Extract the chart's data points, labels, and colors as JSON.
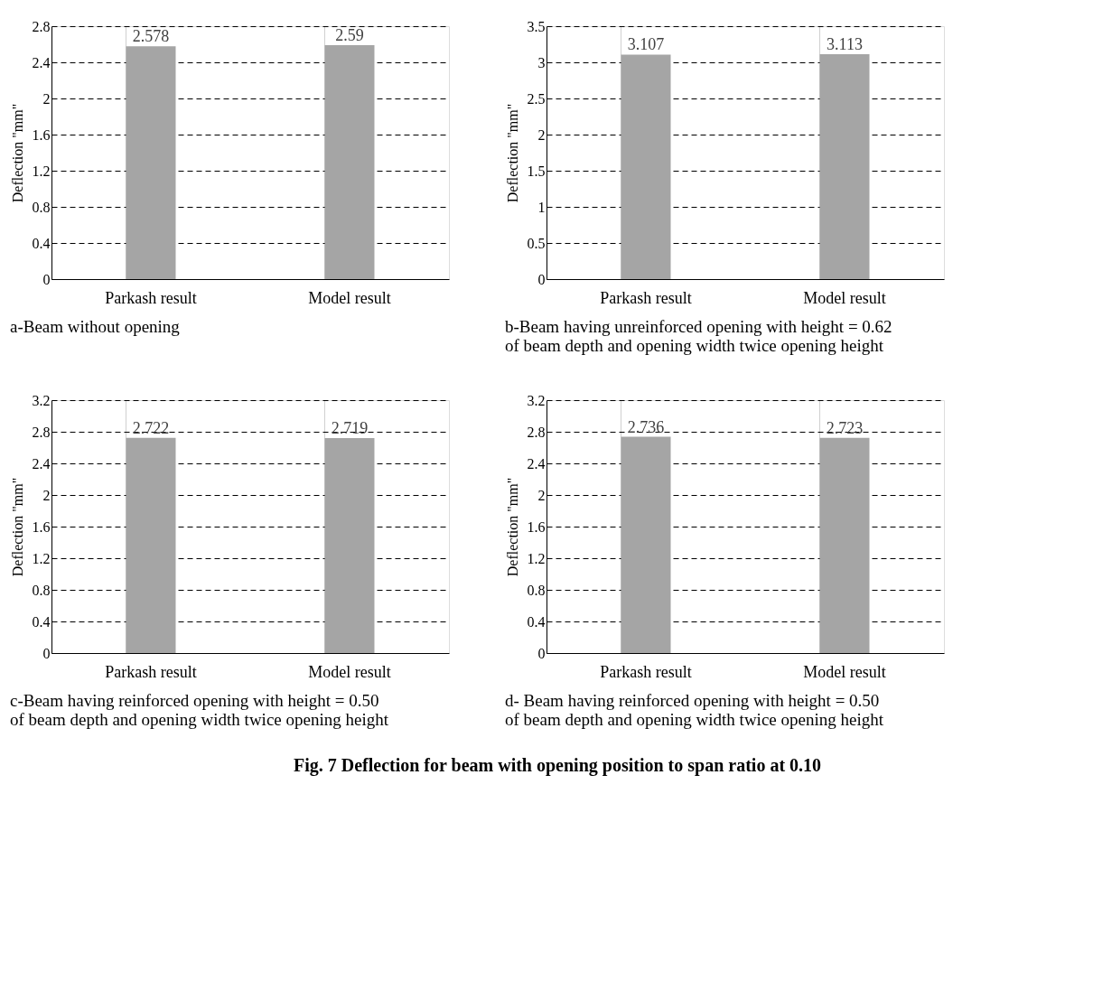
{
  "chart_data": [
    {
      "type": "bar",
      "title": "a-Beam without opening",
      "ylabel": "Deflection \"mm\"",
      "categories": [
        "Parkash result",
        "Model result"
      ],
      "values": [
        2.578,
        2.59
      ],
      "color": "#a5a5a5",
      "ylim": [
        0,
        2.8
      ],
      "yticks": [
        0,
        0.4,
        0.8,
        1.2,
        1.6,
        2,
        2.4,
        2.8
      ],
      "grid": true,
      "data_labels": true
    },
    {
      "type": "bar",
      "title": "b-Beam having unreinforced opening with height = 0.62\n    of beam depth and opening width twice opening height",
      "ylabel": "Deflection \"mm\"",
      "categories": [
        "Parkash result",
        "Model result"
      ],
      "values": [
        3.107,
        3.113
      ],
      "color": "#a5a5a5",
      "ylim": [
        0,
        3.5
      ],
      "yticks": [
        0,
        0.5,
        1,
        1.5,
        2,
        2.5,
        3,
        3.5
      ],
      "grid": true,
      "data_labels": true
    },
    {
      "type": "bar",
      "title": "c-Beam having reinforced opening with height = 0.50\n    of beam depth and opening width twice opening height",
      "ylabel": "Deflection \"mm\"",
      "categories": [
        "Parkash result",
        "Model result"
      ],
      "values": [
        2.722,
        2.719
      ],
      "color": "#a5a5a5",
      "ylim": [
        0,
        3.2
      ],
      "yticks": [
        0,
        0.4,
        0.8,
        1.2,
        1.6,
        2,
        2.4,
        2.8,
        3.2
      ],
      "grid": true,
      "data_labels": true
    },
    {
      "type": "bar",
      "title": "d- Beam having reinforced opening with height = 0.50\n    of beam depth and opening width twice opening height",
      "ylabel": "Deflection \"mm\"",
      "categories": [
        "Parkash result",
        "Model result"
      ],
      "values": [
        2.736,
        2.723
      ],
      "color": "#a5a5a5",
      "ylim": [
        0,
        3.2
      ],
      "yticks": [
        0,
        0.4,
        0.8,
        1.2,
        1.6,
        2,
        2.4,
        2.8,
        3.2
      ],
      "grid": true,
      "data_labels": true,
      "annotations": [
        "Fig. 7 Deflection for beam with opening position to span ratio at 0.10"
      ]
    }
  ]
}
